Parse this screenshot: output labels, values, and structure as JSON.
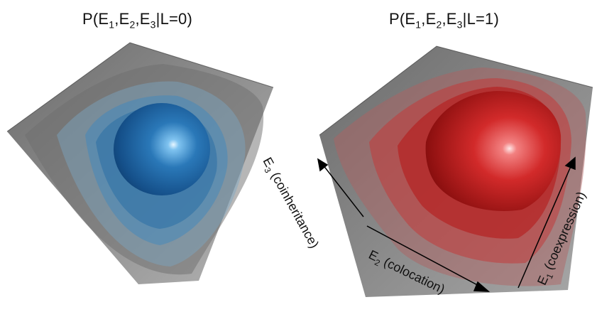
{
  "titles": {
    "left": {
      "prefix": "P(E",
      "s1": "1",
      "c1": ",E",
      "s2": "2",
      "c2": ",E",
      "s3": "3",
      "suffix": "|L=0)"
    },
    "right": {
      "prefix": "P(E",
      "s1": "1",
      "c1": ",E",
      "s2": "2",
      "c2": ",E",
      "s3": "3",
      "suffix": "|L=1)"
    }
  },
  "axes": {
    "e3": {
      "var": "E",
      "sub": "3",
      "text": " (coinheritance)"
    },
    "e2": {
      "var": "E",
      "sub": "2",
      "text": " (colocation)"
    },
    "e1": {
      "var": "E",
      "sub": "1",
      "text": " (coexpression)"
    }
  },
  "colors": {
    "class0_blob": "#1f6aa8",
    "class1_blob": "#c01818",
    "cube_shell": "#555555"
  }
}
